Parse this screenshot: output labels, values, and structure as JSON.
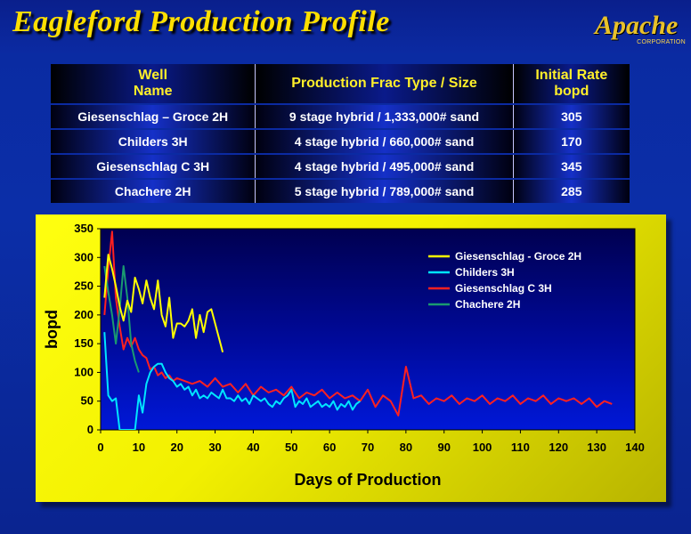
{
  "slide": {
    "title": "Eagleford Production Profile",
    "logo_text": "Apache",
    "logo_sub": "CORPORATION"
  },
  "table": {
    "headers": [
      "Well\nName",
      "Production Frac Type / Size",
      "Initial Rate\nbopd"
    ],
    "rows": [
      [
        "Giesenschlag – Groce 2H",
        "9 stage hybrid / 1,333,000# sand",
        "305"
      ],
      [
        "Childers 3H",
        "4 stage hybrid / 660,000# sand",
        "170"
      ],
      [
        "Giesenschlag C 3H",
        "4 stage hybrid / 495,000# sand",
        "345"
      ],
      [
        "Chachere  2H",
        "5 stage hybrid / 789,000# sand",
        "285"
      ]
    ]
  },
  "chart_data": {
    "type": "line",
    "xlabel": "Days of Production",
    "ylabel": "bopd",
    "xlim": [
      0,
      140
    ],
    "ylim": [
      0,
      350
    ],
    "xticks": [
      0,
      10,
      20,
      30,
      40,
      50,
      60,
      70,
      80,
      90,
      100,
      110,
      120,
      130,
      140
    ],
    "yticks": [
      0,
      50,
      100,
      150,
      200,
      250,
      300,
      350
    ],
    "legend_position": "top-right",
    "series": [
      {
        "name": "Giesenschlag - Groce 2H",
        "color": "#ffff00",
        "x": [
          1,
          2,
          3,
          4,
          5,
          6,
          7,
          8,
          9,
          10,
          11,
          12,
          13,
          14,
          15,
          16,
          17,
          18,
          19,
          20,
          21,
          22,
          23,
          24,
          25,
          26,
          27,
          28,
          29,
          30,
          31,
          32
        ],
        "y": [
          230,
          305,
          280,
          250,
          215,
          190,
          225,
          205,
          265,
          245,
          220,
          260,
          230,
          210,
          260,
          200,
          180,
          230,
          160,
          185,
          185,
          180,
          190,
          210,
          160,
          200,
          170,
          205,
          210,
          185,
          160,
          135
        ]
      },
      {
        "name": "Childers 3H",
        "color": "#00e5ff",
        "x": [
          1,
          2,
          3,
          4,
          5,
          6,
          7,
          8,
          9,
          10,
          11,
          12,
          13,
          14,
          15,
          16,
          17,
          18,
          19,
          20,
          21,
          22,
          23,
          24,
          25,
          26,
          27,
          28,
          29,
          30,
          31,
          32,
          33,
          34,
          35,
          36,
          37,
          38,
          39,
          40,
          41,
          42,
          43,
          44,
          45,
          46,
          47,
          48,
          49,
          50,
          51,
          52,
          53,
          54,
          55,
          56,
          57,
          58,
          59,
          60,
          61,
          62,
          63,
          64,
          65,
          66,
          67,
          68
        ],
        "y": [
          170,
          60,
          50,
          55,
          0,
          0,
          0,
          0,
          0,
          60,
          30,
          80,
          100,
          110,
          115,
          115,
          100,
          90,
          85,
          75,
          80,
          70,
          75,
          60,
          70,
          55,
          60,
          55,
          65,
          60,
          55,
          70,
          55,
          55,
          50,
          60,
          50,
          55,
          45,
          60,
          55,
          50,
          55,
          45,
          40,
          50,
          45,
          55,
          60,
          70,
          40,
          50,
          45,
          55,
          40,
          45,
          50,
          40,
          45,
          40,
          50,
          35,
          45,
          40,
          50,
          35,
          45,
          50
        ]
      },
      {
        "name": "Giesenschlag C 3H",
        "color": "#ff2020",
        "x": [
          1,
          2,
          3,
          4,
          5,
          6,
          7,
          8,
          9,
          10,
          11,
          12,
          13,
          14,
          15,
          16,
          17,
          18,
          19,
          20,
          22,
          24,
          26,
          28,
          30,
          32,
          34,
          36,
          38,
          40,
          42,
          44,
          46,
          48,
          50,
          52,
          54,
          56,
          58,
          60,
          62,
          64,
          66,
          68,
          70,
          72,
          74,
          76,
          78,
          80,
          82,
          84,
          86,
          88,
          90,
          92,
          94,
          96,
          98,
          100,
          102,
          104,
          106,
          108,
          110,
          112,
          114,
          116,
          118,
          120,
          122,
          124,
          126,
          128,
          130,
          132,
          134
        ],
        "y": [
          200,
          280,
          345,
          230,
          180,
          140,
          160,
          145,
          160,
          140,
          130,
          125,
          105,
          110,
          95,
          100,
          90,
          95,
          85,
          90,
          85,
          80,
          85,
          75,
          90,
          75,
          80,
          65,
          80,
          60,
          75,
          65,
          70,
          60,
          75,
          55,
          65,
          60,
          70,
          55,
          65,
          55,
          60,
          50,
          70,
          40,
          60,
          50,
          25,
          110,
          55,
          60,
          45,
          55,
          50,
          60,
          45,
          55,
          50,
          60,
          45,
          55,
          50,
          60,
          45,
          55,
          50,
          60,
          45,
          55,
          50,
          55,
          45,
          55,
          40,
          50,
          45
        ]
      },
      {
        "name": "Chachere 2H",
        "color": "#1a9a70",
        "x": [
          1,
          2,
          3,
          4,
          5,
          6,
          7,
          8,
          9,
          10
        ],
        "y": [
          285,
          240,
          200,
          150,
          210,
          285,
          230,
          150,
          120,
          100
        ]
      }
    ]
  }
}
